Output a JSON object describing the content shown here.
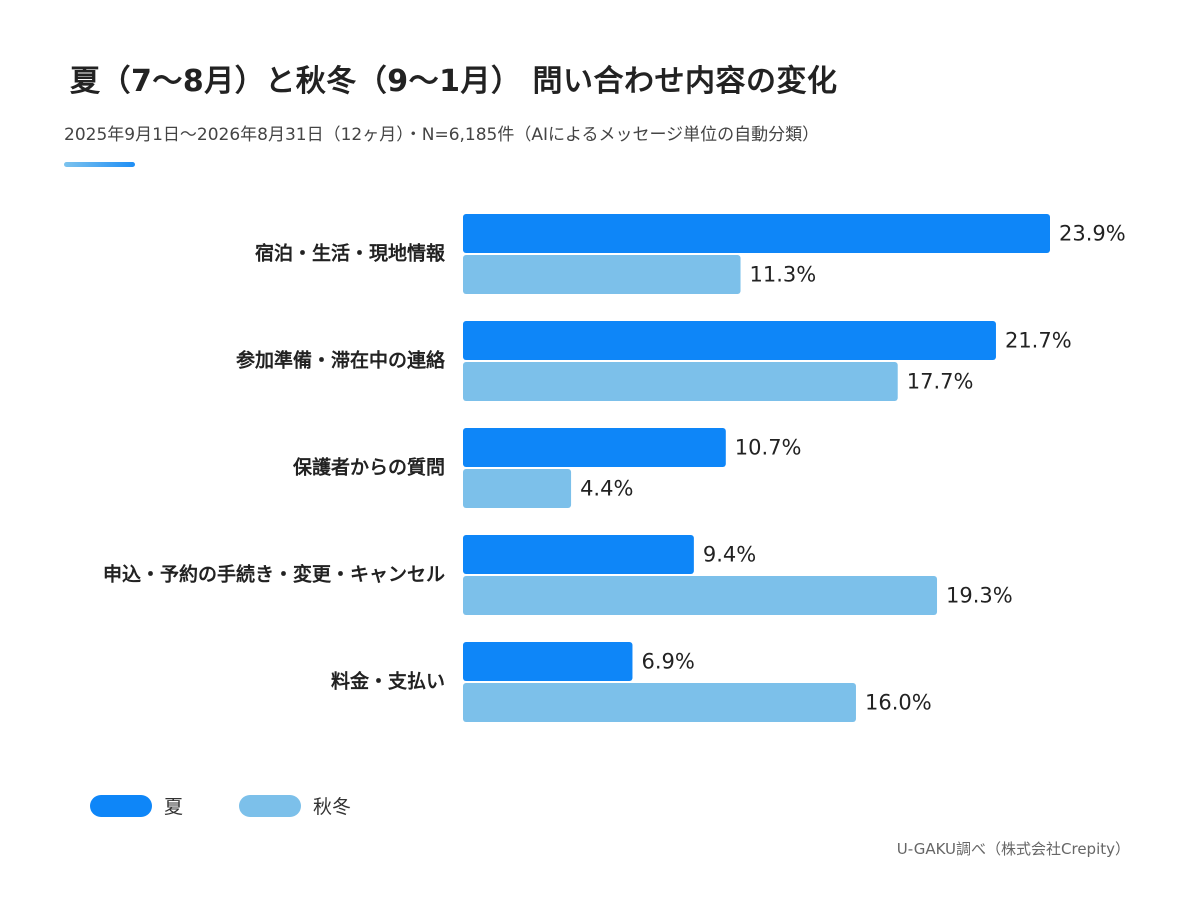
{
  "header": {
    "title": "夏（7〜8月）と秋冬（9〜1月） 問い合わせ内容の変化",
    "subtitle": "2025年9月1日〜2026年8月31日（12ヶ月）・N=6,185件（AIによるメッセージ単位の自動分類）"
  },
  "colors": {
    "summer": "#0e86f8",
    "autumn_winter": "#7cc0ea",
    "accent": "#1e8ef5"
  },
  "legend": {
    "items": [
      {
        "label": "夏"
      },
      {
        "label": "秋冬"
      }
    ]
  },
  "chart_data": {
    "type": "bar",
    "orientation": "horizontal",
    "categories": [
      "宿泊・生活・現地情報",
      "参加準備・滞在中の連絡",
      "保護者からの質問",
      "申込・予約の手続き・変更・キャンセル",
      "料金・支払い"
    ],
    "series": [
      {
        "name": "夏",
        "values": [
          23.9,
          21.7,
          10.7,
          9.4,
          6.9
        ],
        "labels": [
          "23.9%",
          "21.7%",
          "10.7%",
          "9.4%",
          "6.9%"
        ]
      },
      {
        "name": "秋冬",
        "values": [
          11.3,
          17.7,
          4.4,
          19.3,
          16.0
        ],
        "labels": [
          "11.3%",
          "17.7%",
          "4.4%",
          "19.3%",
          "16.0%"
        ]
      }
    ],
    "xlim": [
      0,
      25
    ],
    "grid": false,
    "legend_position": "bottom-left"
  },
  "footer": {
    "source": "U-GAKU調べ（株式会社Crepity）"
  }
}
